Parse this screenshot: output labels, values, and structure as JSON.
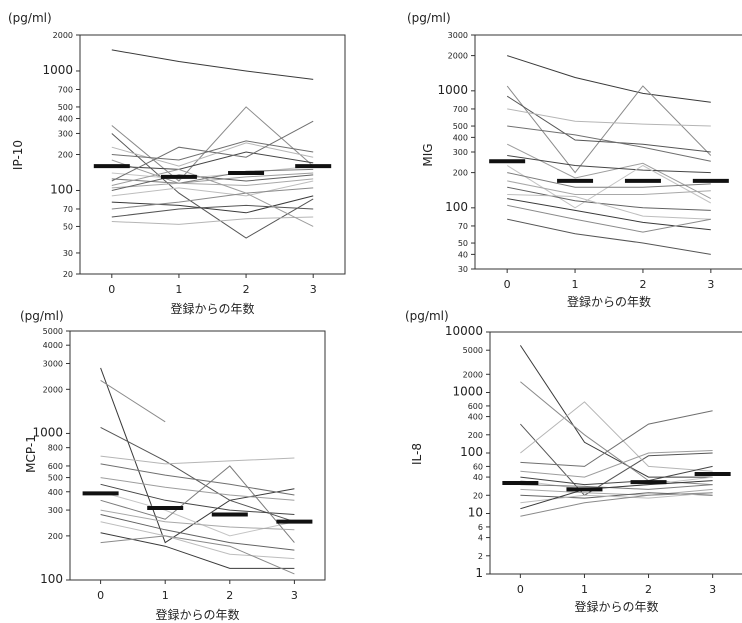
{
  "chart_data": [
    {
      "type": "line",
      "unit": "(pg/ml)",
      "ylabel": "IP-10",
      "xlabel": "登録からの年数",
      "x": [
        0,
        1,
        2,
        3
      ],
      "xticks": [
        "0",
        "1",
        "2",
        "3"
      ],
      "yscale": "log",
      "ylim": [
        20,
        2000
      ],
      "yticks": [
        20,
        30,
        50,
        70,
        100,
        200,
        300,
        400,
        500,
        700,
        1000,
        2000
      ],
      "ytick_labels": [
        "20",
        "30",
        "50",
        "70",
        "100",
        "200",
        "300",
        "400",
        "500",
        "700",
        "1000",
        "2000"
      ],
      "medians": [
        160,
        130,
        140,
        160
      ],
      "series": [
        {
          "values": [
            1500,
            1200,
            1000,
            850
          ]
        },
        {
          "values": [
            350,
            120,
            500,
            160
          ]
        },
        {
          "values": [
            300,
            95,
            40,
            85
          ]
        },
        {
          "values": [
            230,
            160,
            250,
            190
          ]
        },
        {
          "values": [
            200,
            180,
            260,
            210
          ]
        },
        {
          "values": [
            180,
            115,
            130,
            140
          ]
        },
        {
          "values": [
            160,
            150,
            210,
            170
          ]
        },
        {
          "values": [
            140,
            125,
            140,
            160
          ]
        },
        {
          "values": [
            125,
            115,
            145,
            150
          ]
        },
        {
          "values": [
            105,
            115,
            110,
            125
          ]
        },
        {
          "values": [
            100,
            135,
            120,
            135
          ]
        },
        {
          "values": [
            90,
            105,
            90,
            120
          ]
        },
        {
          "values": [
            80,
            75,
            65,
            90
          ]
        },
        {
          "values": [
            70,
            80,
            95,
            105
          ]
        },
        {
          "values": [
            60,
            70,
            75,
            70
          ]
        },
        {
          "values": [
            55,
            52,
            58,
            60
          ]
        },
        {
          "values": [
            120,
            230,
            190,
            380
          ]
        },
        {
          "values": [
            110,
            150,
            95,
            50
          ]
        }
      ]
    },
    {
      "type": "line",
      "unit": "(pg/ml)",
      "ylabel": "MIG",
      "xlabel": "登録からの年数",
      "x": [
        0,
        1,
        2,
        3
      ],
      "xticks": [
        "0",
        "1",
        "2",
        "3"
      ],
      "yscale": "log",
      "ylim": [
        30,
        3000
      ],
      "yticks": [
        30,
        40,
        50,
        70,
        100,
        200,
        300,
        400,
        500,
        700,
        1000,
        2000,
        3000
      ],
      "ytick_labels": [
        "30",
        "40",
        "50",
        "70",
        "100",
        "200",
        "300",
        "400",
        "500",
        "700",
        "1000",
        "2000",
        "3000"
      ],
      "medians": [
        250,
        170,
        170,
        170
      ],
      "series": [
        {
          "values": [
            2000,
            1300,
            950,
            800
          ]
        },
        {
          "values": [
            1100,
            200,
            1100,
            280
          ]
        },
        {
          "values": [
            900,
            380,
            350,
            300
          ]
        },
        {
          "values": [
            700,
            550,
            520,
            500
          ]
        },
        {
          "values": [
            500,
            420,
            330,
            250
          ]
        },
        {
          "values": [
            350,
            180,
            240,
            120
          ]
        },
        {
          "values": [
            280,
            230,
            210,
            200
          ]
        },
        {
          "values": [
            230,
            100,
            230,
            110
          ]
        },
        {
          "values": [
            200,
            150,
            150,
            160
          ]
        },
        {
          "values": [
            170,
            130,
            130,
            140
          ]
        },
        {
          "values": [
            150,
            115,
            100,
            95
          ]
        },
        {
          "values": [
            130,
            125,
            85,
            80
          ]
        },
        {
          "values": [
            120,
            95,
            75,
            65
          ]
        },
        {
          "values": [
            105,
            80,
            62,
            80
          ]
        },
        {
          "values": [
            80,
            60,
            50,
            40
          ]
        }
      ]
    },
    {
      "type": "line",
      "unit": "(pg/ml)",
      "ylabel": "MCP-1",
      "xlabel": "登録からの年数",
      "x": [
        0,
        1,
        2,
        3
      ],
      "xticks": [
        "0",
        "1",
        "2",
        "3"
      ],
      "yscale": "log",
      "ylim": [
        100,
        5000
      ],
      "yticks": [
        100,
        200,
        300,
        400,
        500,
        600,
        800,
        1000,
        2000,
        3000,
        4000,
        5000
      ],
      "ytick_labels": [
        "100",
        "200",
        "300",
        "400",
        "500",
        "600",
        "800",
        "1000",
        "2000",
        "3000",
        "4000",
        "5000"
      ],
      "medians": [
        390,
        310,
        280,
        250
      ],
      "series": [
        {
          "values": [
            2800,
            180,
            350,
            420
          ]
        },
        {
          "values": [
            2300,
            1200,
            null,
            null
          ]
        },
        {
          "values": [
            1100,
            650,
            350,
            250
          ]
        },
        {
          "values": [
            700,
            620,
            650,
            680
          ]
        },
        {
          "values": [
            620,
            520,
            450,
            380
          ]
        },
        {
          "values": [
            500,
            430,
            380,
            350
          ]
        },
        {
          "values": [
            450,
            350,
            300,
            280
          ]
        },
        {
          "values": [
            400,
            300,
            200,
            250
          ]
        },
        {
          "values": [
            350,
            260,
            600,
            180
          ]
        },
        {
          "values": [
            300,
            250,
            230,
            220
          ]
        },
        {
          "values": [
            280,
            220,
            180,
            160
          ]
        },
        {
          "values": [
            250,
            200,
            150,
            140
          ]
        },
        {
          "values": [
            210,
            170,
            120,
            120
          ]
        },
        {
          "values": [
            180,
            200,
            170,
            110
          ]
        }
      ]
    },
    {
      "type": "line",
      "unit": "(pg/ml)",
      "ylabel": "IL-8",
      "xlabel": "登録からの年数",
      "x": [
        0,
        1,
        2,
        3
      ],
      "xticks": [
        "0",
        "1",
        "2",
        "3"
      ],
      "yscale": "log",
      "ylim": [
        1,
        10000
      ],
      "yticks": [
        1,
        2,
        4,
        6,
        10,
        20,
        40,
        60,
        100,
        200,
        400,
        600,
        1000,
        2000,
        5000,
        10000
      ],
      "ytick_labels": [
        "1",
        "2",
        "4",
        "6",
        "10",
        "20",
        "40",
        "60",
        "100",
        "200",
        "400",
        "600",
        "1000",
        "2000",
        "5000",
        "10000"
      ],
      "medians": [
        32,
        25,
        33,
        45
      ],
      "series": [
        {
          "values": [
            6000,
            150,
            40,
            40
          ]
        },
        {
          "values": [
            1500,
            200,
            35,
            30
          ]
        },
        {
          "values": [
            300,
            20,
            90,
            100
          ]
        },
        {
          "values": [
            100,
            700,
            60,
            50
          ]
        },
        {
          "values": [
            70,
            60,
            300,
            500
          ]
        },
        {
          "values": [
            50,
            40,
            100,
            110
          ]
        },
        {
          "values": [
            40,
            30,
            35,
            60
          ]
        },
        {
          "values": [
            35,
            25,
            30,
            40
          ]
        },
        {
          "values": [
            30,
            28,
            25,
            30
          ]
        },
        {
          "values": [
            25,
            22,
            20,
            25
          ]
        },
        {
          "values": [
            20,
            18,
            22,
            20
          ]
        },
        {
          "values": [
            15,
            20,
            18,
            22
          ]
        },
        {
          "values": [
            12,
            25,
            30,
            35
          ]
        },
        {
          "values": [
            9,
            15,
            20,
            22
          ]
        }
      ]
    }
  ]
}
